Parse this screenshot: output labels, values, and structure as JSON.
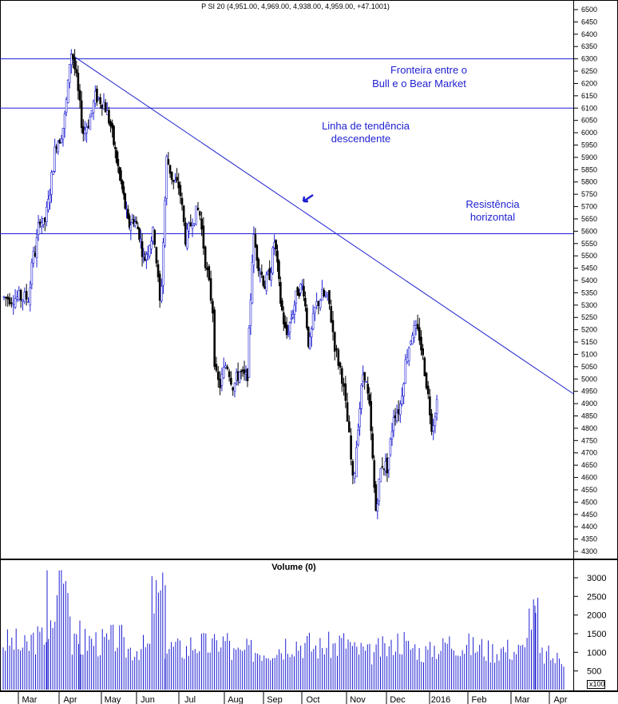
{
  "chart_data": {
    "type": "candlestick",
    "title": "P SI 20 (4,951.00, 4,969.00, 4,938.00, 4,959.00, +47.1001)",
    "price_axis": {
      "ylim": [
        4250,
        6550
      ],
      "ticks": [
        6500,
        6450,
        6400,
        6350,
        6300,
        6250,
        6200,
        6150,
        6100,
        6050,
        6000,
        5950,
        5900,
        5850,
        5800,
        5750,
        5700,
        5650,
        5600,
        5550,
        5500,
        5450,
        5400,
        5350,
        5300,
        5250,
        5200,
        5150,
        5100,
        5050,
        5000,
        4950,
        4900,
        4850,
        4800,
        4750,
        4700,
        4650,
        4600,
        4550,
        4500,
        4450,
        4400,
        4350,
        4300
      ]
    },
    "volume_axis": {
      "title": "Volume (0)",
      "ticks": [
        3000,
        2500,
        2000,
        1500,
        1000,
        500
      ],
      "multiplier_label": "x100",
      "ylim": [
        0,
        3300
      ]
    },
    "x_months": [
      "Mar",
      "Apr",
      "May",
      "Jun",
      "Jul",
      "Aug",
      "Sep",
      "Oct",
      "Nov",
      "Dec",
      "2016",
      "Feb",
      "Mar",
      "Apr"
    ],
    "horizontal_lines": [
      6300,
      6100,
      5590
    ],
    "trendline": {
      "from_month_index": 1,
      "from_value": 6320,
      "to": "Apr",
      "to_value": 4960
    },
    "annotations": [
      {
        "text": "Fronteira entre o",
        "line": 1,
        "group": "fronteira"
      },
      {
        "text": "Bull e o Bear Market",
        "line": 2,
        "group": "fronteira"
      },
      {
        "text": "Linha de tendência",
        "line": 1,
        "group": "tendencia"
      },
      {
        "text": "descendente",
        "line": 2,
        "group": "tendencia"
      },
      {
        "text": "Resistência",
        "line": 1,
        "group": "resistencia"
      },
      {
        "text": "horizontal",
        "line": 2,
        "group": "resistencia"
      }
    ],
    "price_path": [
      [
        0,
        5330
      ],
      [
        0.05,
        5480
      ],
      [
        0.15,
        5520
      ],
      [
        0.25,
        5660
      ],
      [
        0.35,
        5620
      ],
      [
        0.45,
        5700
      ],
      [
        0.55,
        5830
      ],
      [
        0.65,
        5960
      ],
      [
        0.75,
        5980
      ],
      [
        0.85,
        6040
      ],
      [
        0.95,
        6200
      ],
      [
        1.0,
        6330
      ],
      [
        1.05,
        6320
      ],
      [
        1.15,
        6210
      ],
      [
        1.3,
        6000
      ],
      [
        1.45,
        6050
      ],
      [
        1.6,
        6150
      ],
      [
        1.8,
        6120
      ],
      [
        1.95,
        6030
      ],
      [
        2.1,
        5900
      ],
      [
        2.3,
        5750
      ],
      [
        2.45,
        5620
      ],
      [
        2.6,
        5650
      ],
      [
        2.75,
        5600
      ],
      [
        2.9,
        5480
      ],
      [
        3.05,
        5560
      ],
      [
        3.15,
        5600
      ],
      [
        3.3,
        5280
      ],
      [
        3.45,
        5900
      ],
      [
        3.6,
        5800
      ],
      [
        3.75,
        5780
      ],
      [
        3.9,
        5560
      ],
      [
        4.05,
        5650
      ],
      [
        4.2,
        5690
      ],
      [
        4.35,
        5460
      ],
      [
        4.5,
        5280
      ],
      [
        4.55,
        5020
      ],
      [
        4.65,
        4970
      ],
      [
        4.8,
        5070
      ],
      [
        4.95,
        4970
      ],
      [
        5.1,
        5030
      ],
      [
        5.2,
        5010
      ],
      [
        5.3,
        5000
      ],
      [
        5.45,
        5580
      ],
      [
        5.6,
        5460
      ],
      [
        5.75,
        5380
      ],
      [
        5.9,
        5440
      ],
      [
        6.0,
        5570
      ],
      [
        6.15,
        5320
      ],
      [
        6.3,
        5170
      ],
      [
        6.45,
        5260
      ],
      [
        6.6,
        5360
      ],
      [
        6.75,
        5380
      ],
      [
        6.9,
        5120
      ],
      [
        7.05,
        5290
      ],
      [
        7.2,
        5340
      ],
      [
        7.35,
        5320
      ],
      [
        7.5,
        5120
      ],
      [
        7.65,
        5010
      ],
      [
        7.8,
        4780
      ],
      [
        7.9,
        4560
      ],
      [
        8.0,
        4800
      ],
      [
        8.15,
        5050
      ],
      [
        8.3,
        4870
      ],
      [
        8.45,
        4460
      ],
      [
        8.6,
        4660
      ],
      [
        8.75,
        4640
      ],
      [
        8.9,
        4860
      ],
      [
        9.05,
        4880
      ],
      [
        9.2,
        5090
      ],
      [
        9.35,
        5200
      ],
      [
        9.5,
        5180
      ],
      [
        9.65,
        5010
      ],
      [
        9.8,
        4800
      ],
      [
        9.95,
        4950
      ]
    ],
    "volume_path": [
      1450,
      1300,
      1550,
      1750,
      3200,
      1350,
      1500,
      1450,
      1550,
      1250,
      1300,
      2800,
      1300,
      1250,
      1400,
      1350,
      1500,
      1100,
      1200,
      1200,
      1300,
      1450,
      1400,
      1300,
      1350,
      1450,
      1200,
      1100,
      1250,
      1500,
      1300,
      1150,
      1300,
      1450,
      1350,
      1300,
      1200,
      1250,
      1200,
      2250,
      1050,
      950
    ]
  }
}
